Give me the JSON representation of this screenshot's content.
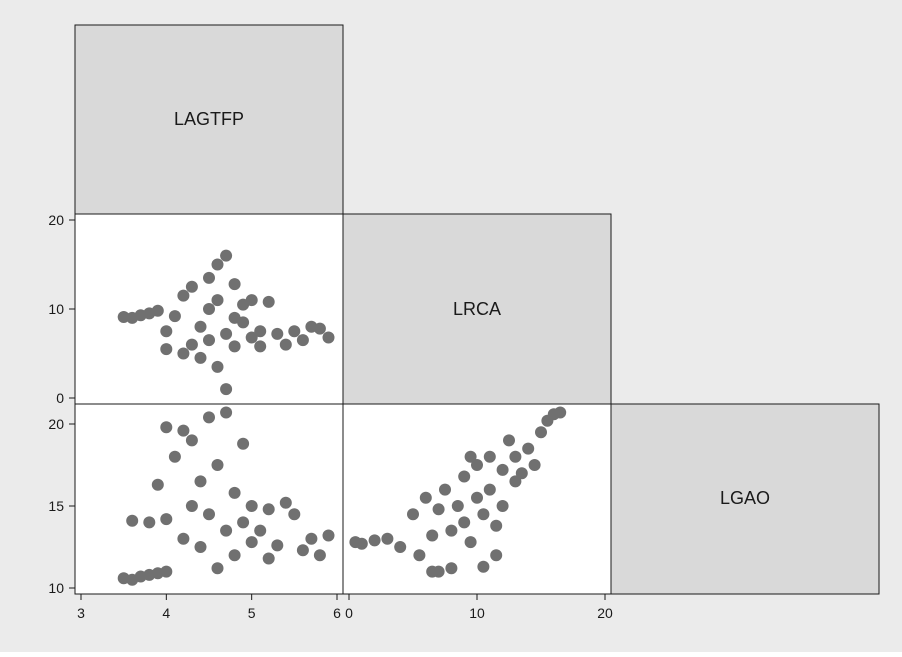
{
  "chart_data": {
    "type": "scatter",
    "layout": "scatter-matrix-lower-half",
    "variables": [
      "LAGTFP",
      "LRCA",
      "LGAO"
    ],
    "colors": {
      "background": "#ebebeb",
      "label_box": "#d9d9d9",
      "plot_bg": "#ffffff",
      "marker": "#707070",
      "axis": "#1a1a1a"
    },
    "axes": {
      "LAGTFP": {
        "range": [
          3,
          6
        ],
        "ticks": [
          3,
          4,
          5,
          6
        ],
        "tick_labels": [
          "3",
          "4",
          "5",
          "6"
        ]
      },
      "LRCA": {
        "range": [
          0,
          20
        ],
        "ticks": [
          0,
          10,
          20
        ],
        "tick_labels": [
          "0",
          "10",
          "20"
        ]
      },
      "LGAO": {
        "range": [
          10,
          20
        ],
        "ticks": [
          10,
          15,
          20
        ],
        "tick_labels": [
          "10",
          "15",
          "20"
        ]
      }
    },
    "panels": [
      {
        "x_var": "LAGTFP",
        "y_var": "LRCA",
        "description_points": [
          [
            3.5,
            9.1
          ],
          [
            3.6,
            9.0
          ],
          [
            3.7,
            9.3
          ],
          [
            3.8,
            9.5
          ],
          [
            3.9,
            9.8
          ],
          [
            4.0,
            7.5
          ],
          [
            4.0,
            5.5
          ],
          [
            4.1,
            9.2
          ],
          [
            4.2,
            5.0
          ],
          [
            4.2,
            11.5
          ],
          [
            4.3,
            6.0
          ],
          [
            4.3,
            12.5
          ],
          [
            4.4,
            8.0
          ],
          [
            4.4,
            4.5
          ],
          [
            4.5,
            10.0
          ],
          [
            4.5,
            13.5
          ],
          [
            4.5,
            6.5
          ],
          [
            4.6,
            15.0
          ],
          [
            4.6,
            3.5
          ],
          [
            4.6,
            11.0
          ],
          [
            4.7,
            16.0
          ],
          [
            4.7,
            7.2
          ],
          [
            4.7,
            1.0
          ],
          [
            4.8,
            12.8
          ],
          [
            4.8,
            5.8
          ],
          [
            4.8,
            9.0
          ],
          [
            4.9,
            8.5
          ],
          [
            4.9,
            10.5
          ],
          [
            5.0,
            6.8
          ],
          [
            5.0,
            11.0
          ],
          [
            5.1,
            7.5
          ],
          [
            5.1,
            5.8
          ],
          [
            5.2,
            10.8
          ],
          [
            5.3,
            7.2
          ],
          [
            5.4,
            6.0
          ],
          [
            5.5,
            7.5
          ],
          [
            5.6,
            6.5
          ],
          [
            5.7,
            8.0
          ],
          [
            5.8,
            7.8
          ],
          [
            5.9,
            6.8
          ]
        ]
      },
      {
        "x_var": "LAGTFP",
        "y_var": "LGAO",
        "description_points": [
          [
            3.5,
            10.6
          ],
          [
            3.6,
            10.5
          ],
          [
            3.7,
            10.7
          ],
          [
            3.8,
            10.8
          ],
          [
            3.9,
            10.9
          ],
          [
            4.0,
            11.0
          ],
          [
            3.6,
            14.1
          ],
          [
            3.8,
            14.0
          ],
          [
            3.9,
            16.3
          ],
          [
            4.0,
            14.2
          ],
          [
            4.0,
            19.8
          ],
          [
            4.1,
            18.0
          ],
          [
            4.2,
            19.6
          ],
          [
            4.2,
            13.0
          ],
          [
            4.3,
            15.0
          ],
          [
            4.3,
            19.0
          ],
          [
            4.4,
            16.5
          ],
          [
            4.4,
            12.5
          ],
          [
            4.5,
            20.4
          ],
          [
            4.5,
            14.5
          ],
          [
            4.6,
            11.2
          ],
          [
            4.6,
            17.5
          ],
          [
            4.7,
            20.7
          ],
          [
            4.7,
            13.5
          ],
          [
            4.8,
            15.8
          ],
          [
            4.8,
            12.0
          ],
          [
            4.9,
            18.8
          ],
          [
            4.9,
            14.0
          ],
          [
            5.0,
            15.0
          ],
          [
            5.0,
            12.8
          ],
          [
            5.1,
            13.5
          ],
          [
            5.2,
            14.8
          ],
          [
            5.3,
            12.6
          ],
          [
            5.4,
            15.2
          ],
          [
            5.5,
            14.5
          ],
          [
            5.6,
            12.3
          ],
          [
            5.7,
            13.0
          ],
          [
            5.8,
            12.0
          ],
          [
            5.9,
            13.2
          ],
          [
            5.2,
            11.8
          ]
        ]
      },
      {
        "x_var": "LRCA",
        "y_var": "LGAO",
        "description_points": [
          [
            0.5,
            12.8
          ],
          [
            1.0,
            12.7
          ],
          [
            2.0,
            12.9
          ],
          [
            3.0,
            13.0
          ],
          [
            4.0,
            12.5
          ],
          [
            5.0,
            14.5
          ],
          [
            5.5,
            12.0
          ],
          [
            6.0,
            15.5
          ],
          [
            6.5,
            13.2
          ],
          [
            7.0,
            11.0
          ],
          [
            7.0,
            14.8
          ],
          [
            7.5,
            16.0
          ],
          [
            8.0,
            13.5
          ],
          [
            8.0,
            11.2
          ],
          [
            8.5,
            15.0
          ],
          [
            9.0,
            16.8
          ],
          [
            9.0,
            14.0
          ],
          [
            9.5,
            12.8
          ],
          [
            10.0,
            15.5
          ],
          [
            10.0,
            17.5
          ],
          [
            10.5,
            14.5
          ],
          [
            10.5,
            11.3
          ],
          [
            11.0,
            18.0
          ],
          [
            11.0,
            16.0
          ],
          [
            11.5,
            13.8
          ],
          [
            12.0,
            17.2
          ],
          [
            12.0,
            15.0
          ],
          [
            12.5,
            19.0
          ],
          [
            13.0,
            16.5
          ],
          [
            13.0,
            18.0
          ],
          [
            13.5,
            17.0
          ],
          [
            14.0,
            18.5
          ],
          [
            14.5,
            17.5
          ],
          [
            15.0,
            19.5
          ],
          [
            15.5,
            20.2
          ],
          [
            16.0,
            20.6
          ],
          [
            16.5,
            20.7
          ],
          [
            6.5,
            11.0
          ],
          [
            11.5,
            12.0
          ],
          [
            9.5,
            18.0
          ]
        ]
      }
    ]
  }
}
